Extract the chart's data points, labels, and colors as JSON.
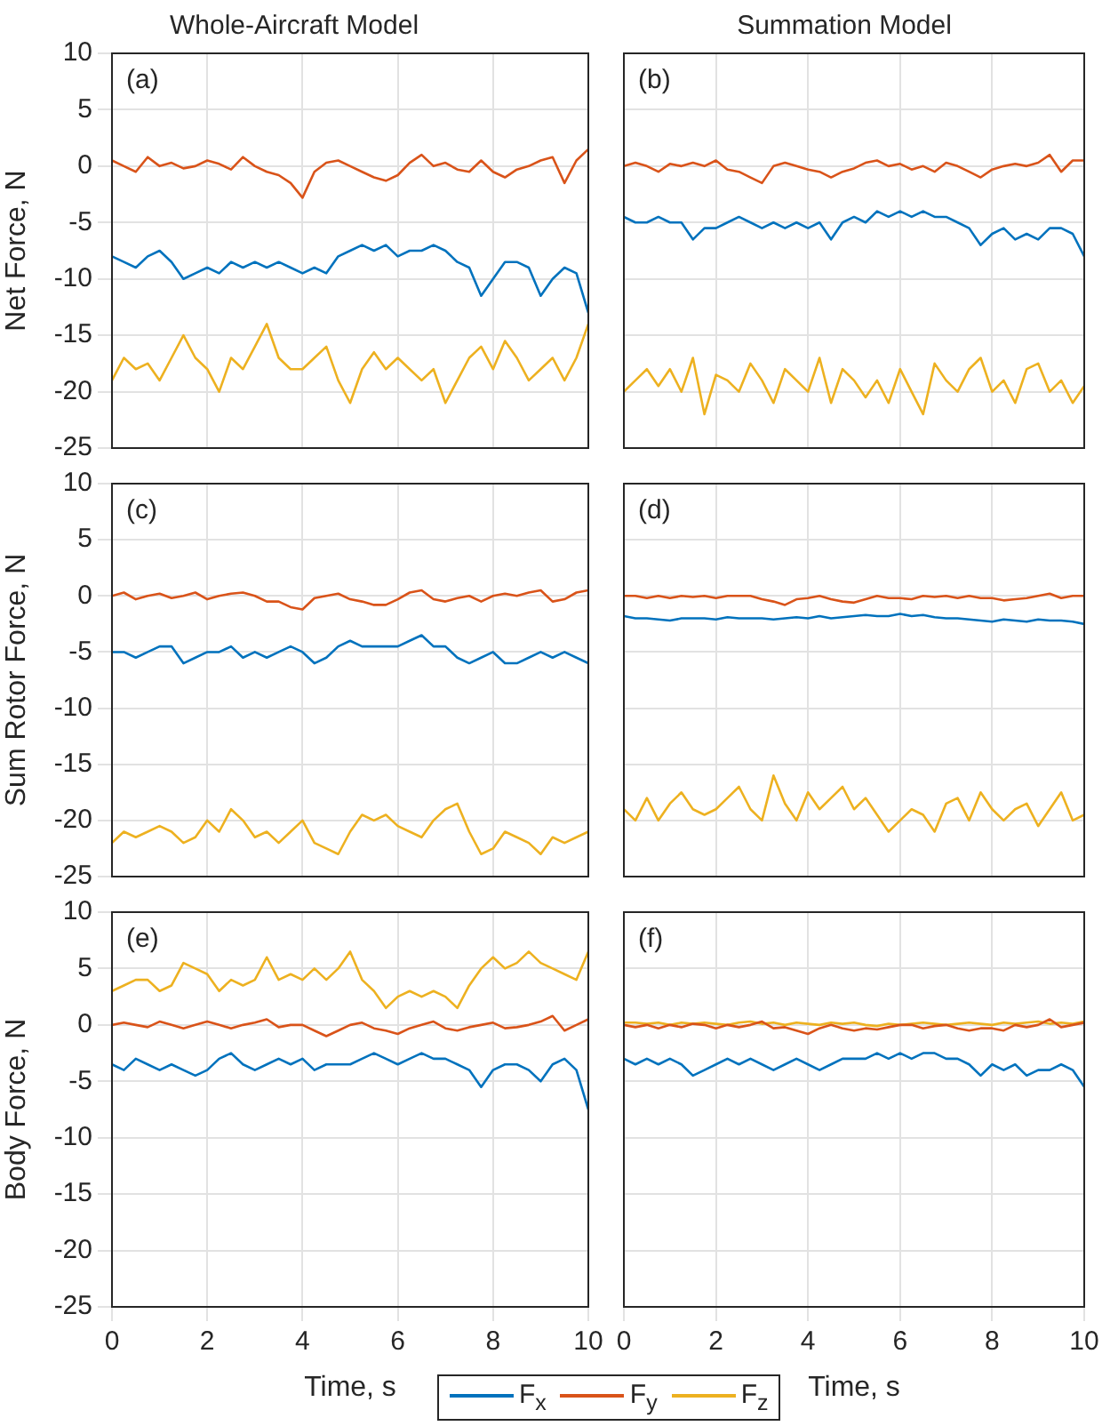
{
  "chart_data": [
    {
      "type": "line",
      "title": "Whole-Aircraft Model",
      "ylabel": "Net Force, N",
      "annotations": [
        "(a)"
      ],
      "xlim": [
        0,
        10
      ],
      "xticks": [
        0,
        2,
        4,
        6,
        8,
        10
      ],
      "ylim": [
        -25,
        10
      ],
      "yticks": [
        -25,
        -20,
        -15,
        -10,
        -5,
        0,
        5,
        10
      ],
      "grid": true,
      "tick_labels": "y",
      "x": [
        0,
        0.25,
        0.5,
        0.75,
        1,
        1.25,
        1.5,
        1.75,
        2,
        2.25,
        2.5,
        2.75,
        3,
        3.25,
        3.5,
        3.75,
        4,
        4.25,
        4.5,
        4.75,
        5,
        5.25,
        5.5,
        5.75,
        6,
        6.25,
        6.5,
        6.75,
        7,
        7.25,
        7.5,
        7.75,
        8,
        8.25,
        8.5,
        8.75,
        9,
        9.25,
        9.5,
        9.75,
        10
      ],
      "series": [
        {
          "color": "#0072bd",
          "values": [
            -8,
            -8.5,
            -9,
            -8,
            -7.5,
            -8.5,
            -10,
            -9.5,
            -9,
            -9.5,
            -8.5,
            -9,
            -8.5,
            -9,
            -8.5,
            -9,
            -9.5,
            -9,
            -9.5,
            -8,
            -7.5,
            -7,
            -7.5,
            -7,
            -8,
            -7.5,
            -7.5,
            -7,
            -7.5,
            -8.5,
            -9,
            -11.5,
            -10,
            -8.5,
            -8.5,
            -9,
            -11.5,
            -10,
            -9,
            -9.5,
            -13
          ]
        },
        {
          "color": "#d95319",
          "values": [
            0.5,
            0,
            -0.5,
            0.8,
            0,
            0.3,
            -0.2,
            0,
            0.5,
            0.2,
            -0.3,
            0.8,
            0,
            -0.5,
            -0.8,
            -1.5,
            -2.8,
            -0.5,
            0.3,
            0.5,
            0,
            -0.5,
            -1,
            -1.3,
            -0.8,
            0.3,
            1,
            0,
            0.3,
            -0.3,
            -0.5,
            0.5,
            -0.5,
            -1,
            -0.3,
            0,
            0.5,
            0.8,
            -1.5,
            0.5,
            1.5
          ]
        },
        {
          "color": "#edb120",
          "values": [
            -19,
            -17,
            -18,
            -17.5,
            -19,
            -17,
            -15,
            -17,
            -18,
            -20,
            -17,
            -18,
            -16,
            -14,
            -17,
            -18,
            -18,
            -17,
            -16,
            -19,
            -21,
            -18,
            -16.5,
            -18,
            -17,
            -18,
            -19,
            -18,
            -21,
            -19,
            -17,
            -16,
            -18,
            -15.5,
            -17,
            -19,
            -18,
            -17,
            -19,
            -17,
            -14
          ]
        }
      ]
    },
    {
      "type": "line",
      "title": "Summation Model",
      "annotations": [
        "(b)"
      ],
      "xlim": [
        0,
        10
      ],
      "xticks": [
        0,
        2,
        4,
        6,
        8,
        10
      ],
      "ylim": [
        -25,
        10
      ],
      "yticks": [
        -25,
        -20,
        -15,
        -10,
        -5,
        0,
        5,
        10
      ],
      "grid": true,
      "tick_labels": false,
      "x": [
        0,
        0.25,
        0.5,
        0.75,
        1,
        1.25,
        1.5,
        1.75,
        2,
        2.25,
        2.5,
        2.75,
        3,
        3.25,
        3.5,
        3.75,
        4,
        4.25,
        4.5,
        4.75,
        5,
        5.25,
        5.5,
        5.75,
        6,
        6.25,
        6.5,
        6.75,
        7,
        7.25,
        7.5,
        7.75,
        8,
        8.25,
        8.5,
        8.75,
        9,
        9.25,
        9.5,
        9.75,
        10
      ],
      "series": [
        {
          "color": "#0072bd",
          "values": [
            -4.5,
            -5,
            -5,
            -4.5,
            -5,
            -5,
            -6.5,
            -5.5,
            -5.5,
            -5,
            -4.5,
            -5,
            -5.5,
            -5,
            -5.5,
            -5,
            -5.5,
            -5,
            -6.5,
            -5,
            -4.5,
            -5,
            -4,
            -4.5,
            -4,
            -4.5,
            -4,
            -4.5,
            -4.5,
            -5,
            -5.5,
            -7,
            -6,
            -5.5,
            -6.5,
            -6,
            -6.5,
            -5.5,
            -5.5,
            -6,
            -8
          ]
        },
        {
          "color": "#d95319",
          "values": [
            0,
            0.3,
            0,
            -0.5,
            0.2,
            0,
            0.3,
            0,
            0.5,
            -0.3,
            -0.5,
            -1,
            -1.5,
            0,
            0.3,
            0,
            -0.3,
            -0.5,
            -1,
            -0.5,
            -0.2,
            0.3,
            0.5,
            0,
            0.2,
            -0.3,
            0,
            -0.5,
            0.3,
            0,
            -0.5,
            -1,
            -0.3,
            0,
            0.2,
            0,
            0.3,
            1,
            -0.5,
            0.5,
            0.5
          ]
        },
        {
          "color": "#edb120",
          "values": [
            -20,
            -19,
            -18,
            -19.5,
            -18,
            -20,
            -17,
            -22,
            -18.5,
            -19,
            -20,
            -17.5,
            -19,
            -21,
            -18,
            -19,
            -20,
            -17,
            -21,
            -18,
            -19,
            -20.5,
            -19,
            -21,
            -18,
            -20,
            -22,
            -17.5,
            -19,
            -20,
            -18,
            -17,
            -20,
            -19,
            -21,
            -18,
            -17.5,
            -20,
            -19,
            -21,
            -19.5
          ]
        }
      ]
    },
    {
      "type": "line",
      "ylabel": "Sum Rotor Force, N",
      "annotations": [
        "(c)"
      ],
      "xlim": [
        0,
        10
      ],
      "xticks": [
        0,
        2,
        4,
        6,
        8,
        10
      ],
      "ylim": [
        -25,
        10
      ],
      "yticks": [
        -25,
        -20,
        -15,
        -10,
        -5,
        0,
        5,
        10
      ],
      "grid": true,
      "tick_labels": "y",
      "x": [
        0,
        0.25,
        0.5,
        0.75,
        1,
        1.25,
        1.5,
        1.75,
        2,
        2.25,
        2.5,
        2.75,
        3,
        3.25,
        3.5,
        3.75,
        4,
        4.25,
        4.5,
        4.75,
        5,
        5.25,
        5.5,
        5.75,
        6,
        6.25,
        6.5,
        6.75,
        7,
        7.25,
        7.5,
        7.75,
        8,
        8.25,
        8.5,
        8.75,
        9,
        9.25,
        9.5,
        9.75,
        10
      ],
      "series": [
        {
          "color": "#0072bd",
          "values": [
            -5,
            -5,
            -5.5,
            -5,
            -4.5,
            -4.5,
            -6,
            -5.5,
            -5,
            -5,
            -4.5,
            -5.5,
            -5,
            -5.5,
            -5,
            -4.5,
            -5,
            -6,
            -5.5,
            -4.5,
            -4,
            -4.5,
            -4.5,
            -4.5,
            -4.5,
            -4,
            -3.5,
            -4.5,
            -4.5,
            -5.5,
            -6,
            -5.5,
            -5,
            -6,
            -6,
            -5.5,
            -5,
            -5.5,
            -5,
            -5.5,
            -6
          ]
        },
        {
          "color": "#d95319",
          "values": [
            0,
            0.3,
            -0.3,
            0,
            0.2,
            -0.2,
            0,
            0.3,
            -0.3,
            0,
            0.2,
            0.3,
            0,
            -0.5,
            -0.5,
            -1,
            -1.2,
            -0.2,
            0,
            0.2,
            -0.3,
            -0.5,
            -0.8,
            -0.8,
            -0.3,
            0.3,
            0.5,
            -0.3,
            -0.5,
            -0.2,
            0,
            -0.5,
            0,
            0.2,
            0,
            0.3,
            0.5,
            -0.5,
            -0.3,
            0.3,
            0.5
          ]
        },
        {
          "color": "#edb120",
          "values": [
            -22,
            -21,
            -21.5,
            -21,
            -20.5,
            -21,
            -22,
            -21.5,
            -20,
            -21,
            -19,
            -20,
            -21.5,
            -21,
            -22,
            -21,
            -20,
            -22,
            -22.5,
            -23,
            -21,
            -19.5,
            -20,
            -19.5,
            -20.5,
            -21,
            -21.5,
            -20,
            -19,
            -18.5,
            -21,
            -23,
            -22.5,
            -21,
            -21.5,
            -22,
            -23,
            -21.5,
            -22,
            -21.5,
            -21
          ]
        }
      ]
    },
    {
      "type": "line",
      "annotations": [
        "(d)"
      ],
      "xlim": [
        0,
        10
      ],
      "xticks": [
        0,
        2,
        4,
        6,
        8,
        10
      ],
      "ylim": [
        -25,
        10
      ],
      "yticks": [
        -25,
        -20,
        -15,
        -10,
        -5,
        0,
        5,
        10
      ],
      "grid": true,
      "tick_labels": false,
      "x": [
        0,
        0.25,
        0.5,
        0.75,
        1,
        1.25,
        1.5,
        1.75,
        2,
        2.25,
        2.5,
        2.75,
        3,
        3.25,
        3.5,
        3.75,
        4,
        4.25,
        4.5,
        4.75,
        5,
        5.25,
        5.5,
        5.75,
        6,
        6.25,
        6.5,
        6.75,
        7,
        7.25,
        7.5,
        7.75,
        8,
        8.25,
        8.5,
        8.75,
        9,
        9.25,
        9.5,
        9.75,
        10
      ],
      "series": [
        {
          "color": "#0072bd",
          "values": [
            -1.8,
            -2,
            -2,
            -2.1,
            -2.2,
            -2,
            -2,
            -2,
            -2.1,
            -1.9,
            -2,
            -2,
            -2,
            -2.1,
            -2,
            -1.9,
            -2,
            -1.8,
            -2,
            -1.9,
            -1.8,
            -1.7,
            -1.8,
            -1.8,
            -1.6,
            -1.8,
            -1.7,
            -1.9,
            -2,
            -2,
            -2.1,
            -2.2,
            -2.3,
            -2.1,
            -2.2,
            -2.3,
            -2.1,
            -2.2,
            -2.2,
            -2.3,
            -2.5
          ]
        },
        {
          "color": "#d95319",
          "values": [
            0,
            0,
            -0.2,
            0,
            -0.2,
            0,
            -0.1,
            0,
            -0.2,
            0,
            0,
            0,
            -0.3,
            -0.5,
            -0.8,
            -0.3,
            -0.2,
            0,
            -0.3,
            -0.5,
            -0.6,
            -0.3,
            0,
            -0.2,
            -0.2,
            -0.3,
            0,
            -0.1,
            0,
            -0.2,
            0,
            -0.2,
            -0.2,
            -0.4,
            -0.3,
            -0.2,
            0,
            0.2,
            -0.2,
            0,
            0
          ]
        },
        {
          "color": "#edb120",
          "values": [
            -19,
            -20,
            -18,
            -20,
            -18.5,
            -17.5,
            -19,
            -19.5,
            -19,
            -18,
            -17,
            -19,
            -20,
            -16,
            -18.5,
            -20,
            -17.5,
            -19,
            -18,
            -17,
            -19,
            -18,
            -19.5,
            -21,
            -20,
            -19,
            -19.5,
            -21,
            -18.5,
            -18,
            -20,
            -17.5,
            -19,
            -20,
            -19,
            -18.5,
            -20.5,
            -19,
            -17.5,
            -20,
            -19.5
          ]
        }
      ]
    },
    {
      "type": "line",
      "xlabel": "Time, s",
      "ylabel": "Body Force, N",
      "annotations": [
        "(e)"
      ],
      "xlim": [
        0,
        10
      ],
      "xticks": [
        0,
        2,
        4,
        6,
        8,
        10
      ],
      "ylim": [
        -25,
        10
      ],
      "yticks": [
        -25,
        -20,
        -15,
        -10,
        -5,
        0,
        5,
        10
      ],
      "grid": true,
      "legend": "bottom",
      "x": [
        0,
        0.25,
        0.5,
        0.75,
        1,
        1.25,
        1.5,
        1.75,
        2,
        2.25,
        2.5,
        2.75,
        3,
        3.25,
        3.5,
        3.75,
        4,
        4.25,
        4.5,
        4.75,
        5,
        5.25,
        5.5,
        5.75,
        6,
        6.25,
        6.5,
        6.75,
        7,
        7.25,
        7.5,
        7.75,
        8,
        8.25,
        8.5,
        8.75,
        9,
        9.25,
        9.5,
        9.75,
        10
      ],
      "series": [
        {
          "name": "F$_{x}$",
          "color": "#0072bd",
          "values": [
            -3.5,
            -4,
            -3,
            -3.5,
            -4,
            -3.5,
            -4,
            -4.5,
            -4,
            -3,
            -2.5,
            -3.5,
            -4,
            -3.5,
            -3,
            -3.5,
            -3,
            -4,
            -3.5,
            -3.5,
            -3.5,
            -3,
            -2.5,
            -3,
            -3.5,
            -3,
            -2.5,
            -3,
            -3,
            -3.5,
            -4,
            -5.5,
            -4,
            -3.5,
            -3.5,
            -4,
            -5,
            -3.5,
            -3,
            -4,
            -7.5
          ]
        },
        {
          "name": "F$_{y}$",
          "color": "#d95319",
          "values": [
            0,
            0.2,
            0,
            -0.2,
            0.3,
            0,
            -0.3,
            0,
            0.3,
            0,
            -0.3,
            0,
            0.2,
            0.5,
            -0.2,
            0,
            0,
            -0.5,
            -1,
            -0.5,
            0,
            0.2,
            -0.3,
            -0.5,
            -0.8,
            -0.3,
            0,
            0.3,
            -0.3,
            -0.5,
            -0.2,
            0,
            0.2,
            -0.3,
            -0.2,
            0,
            0.3,
            0.8,
            -0.5,
            0,
            0.5
          ]
        },
        {
          "name": "F$_{z}$",
          "color": "#edb120",
          "values": [
            3,
            3.5,
            4,
            4,
            3,
            3.5,
            5.5,
            5,
            4.5,
            3,
            4,
            3.5,
            4,
            6,
            4,
            4.5,
            4,
            5,
            4,
            5,
            6.5,
            4,
            3,
            1.5,
            2.5,
            3,
            2.5,
            3,
            2.5,
            1.5,
            3.5,
            5,
            6,
            5,
            5.5,
            6.5,
            5.5,
            5,
            4.5,
            4,
            6.5
          ]
        }
      ]
    },
    {
      "type": "line",
      "xlabel": "Time, s",
      "annotations": [
        "(f)"
      ],
      "xlim": [
        0,
        10
      ],
      "xticks": [
        0,
        2,
        4,
        6,
        8,
        10
      ],
      "ylim": [
        -25,
        10
      ],
      "yticks": [
        -25,
        -20,
        -15,
        -10,
        -5,
        0,
        5,
        10
      ],
      "grid": true,
      "tick_labels": "x",
      "x": [
        0,
        0.25,
        0.5,
        0.75,
        1,
        1.25,
        1.5,
        1.75,
        2,
        2.25,
        2.5,
        2.75,
        3,
        3.25,
        3.5,
        3.75,
        4,
        4.25,
        4.5,
        4.75,
        5,
        5.25,
        5.5,
        5.75,
        6,
        6.25,
        6.5,
        6.75,
        7,
        7.25,
        7.5,
        7.75,
        8,
        8.25,
        8.5,
        8.75,
        9,
        9.25,
        9.5,
        9.75,
        10
      ],
      "series": [
        {
          "color": "#0072bd",
          "values": [
            -3,
            -3.5,
            -3,
            -3.5,
            -3,
            -3.5,
            -4.5,
            -4,
            -3.5,
            -3,
            -3.5,
            -3,
            -3.5,
            -4,
            -3.5,
            -3,
            -3.5,
            -4,
            -3.5,
            -3,
            -3,
            -3,
            -2.5,
            -3,
            -2.5,
            -3,
            -2.5,
            -2.5,
            -3,
            -3,
            -3.5,
            -4.5,
            -3.5,
            -4,
            -3.5,
            -4.5,
            -4,
            -4,
            -3.5,
            -4,
            -5.5
          ]
        },
        {
          "color": "#d95319",
          "values": [
            0,
            -0.2,
            0,
            -0.3,
            0,
            -0.2,
            0.1,
            0,
            -0.3,
            0,
            -0.2,
            0,
            0.3,
            -0.3,
            -0.2,
            -0.5,
            -0.8,
            -0.3,
            0,
            -0.3,
            -0.5,
            -0.3,
            -0.4,
            -0.2,
            0,
            0,
            -0.3,
            -0.1,
            0,
            -0.3,
            -0.5,
            -0.3,
            -0.3,
            -0.5,
            0,
            -0.2,
            0,
            0.5,
            -0.2,
            0,
            0.2
          ]
        },
        {
          "color": "#edb120",
          "values": [
            0.2,
            0.2,
            0.1,
            0.2,
            0,
            0.2,
            0.1,
            0.2,
            0.1,
            0,
            0.2,
            0.3,
            0.1,
            0.2,
            0,
            0.2,
            0.1,
            0,
            0.2,
            0.1,
            0.2,
            0,
            -0.1,
            0.1,
            0,
            0.1,
            0.2,
            0.1,
            0,
            0.1,
            0.2,
            0.1,
            0,
            0.2,
            0.1,
            0.2,
            0.3,
            0.1,
            0.2,
            0.1,
            0.3
          ]
        }
      ]
    }
  ]
}
